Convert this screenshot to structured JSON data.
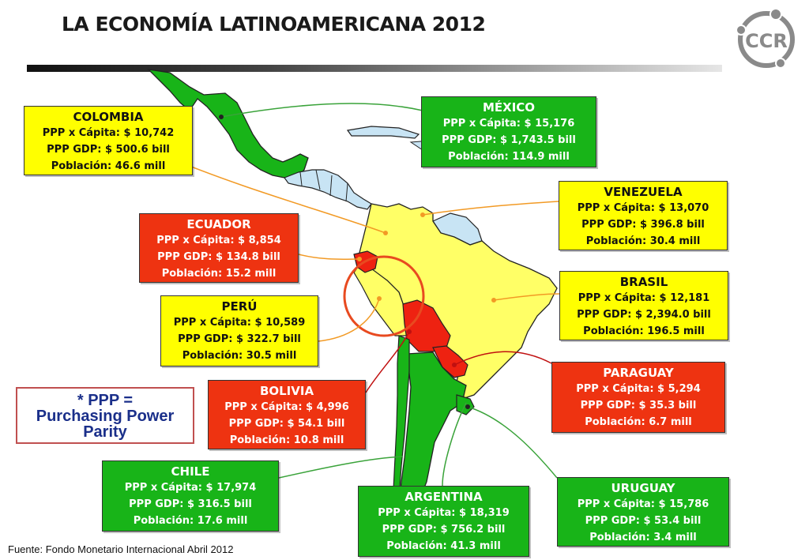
{
  "title": "LA ECONOMÍA LATINOAMERICANA 2012",
  "logo_text": "CCR",
  "ppp_note": {
    "line1": "* PPP =",
    "line2": "Purchasing Power",
    "line3": "Parity"
  },
  "source": "Fuente: Fondo Monetario Internacional Abril 2012",
  "colors": {
    "yellow": "#ffff00",
    "green": "#18b418",
    "red": "#ee3311",
    "land_other": "#c8e4f4",
    "highlight_circle": "#e84a20"
  },
  "countries": {
    "colombia": {
      "name": "COLOMBIA",
      "per_capita": "PPP x Cápita: $ 10,742",
      "gdp": "PPP GDP: $ 500.6 bill",
      "population": "Población: 46.6 mill",
      "color": "yellow"
    },
    "mexico": {
      "name": "MÉXICO",
      "per_capita": "PPP x Cápita: $ 15,176",
      "gdp": "PPP GDP: $ 1,743.5 bill",
      "population": "Población: 114.9 mill",
      "color": "green"
    },
    "venezuela": {
      "name": "VENEZUELA",
      "per_capita": "PPP x Cápita: $ 13,070",
      "gdp": "PPP GDP: $ 396.8 bill",
      "population": "Población: 30.4 mill",
      "color": "yellow"
    },
    "ecuador": {
      "name": "ECUADOR",
      "per_capita": "PPP x Cápita: $ 8,854",
      "gdp": "PPP GDP: $ 134.8 bill",
      "population": "Población: 15.2 mill",
      "color": "red"
    },
    "brasil": {
      "name": "BRASIL",
      "per_capita": "PPP x Cápita: $ 12,181",
      "gdp": "PPP GDP: $ 2,394.0 bill",
      "population": "Población: 196.5 mill",
      "color": "yellow"
    },
    "peru": {
      "name": "PERÚ",
      "per_capita": "PPP x Cápita: $ 10,589",
      "gdp": "PPP GDP: $ 322.7 bill",
      "population": "Población: 30.5 mill",
      "color": "yellow"
    },
    "paraguay": {
      "name": "PARAGUAY",
      "per_capita": "PPP x Cápita: $ 5,294",
      "gdp": "PPP GDP: $ 35.3 bill",
      "population": "Población: 6.7 mill",
      "color": "red"
    },
    "bolivia": {
      "name": "BOLIVIA",
      "per_capita": "PPP x Cápita: $ 4,996",
      "gdp": "PPP GDP: $ 54.1 bill",
      "population": "Población: 10.8 mill",
      "color": "red"
    },
    "chile": {
      "name": "CHILE",
      "per_capita": "PPP x Cápita: $ 17,974",
      "gdp": "PPP GDP: $ 316.5 bill",
      "population": "Población: 17.6 mill",
      "color": "green"
    },
    "uruguay": {
      "name": "URUGUAY",
      "per_capita": "PPP x Cápita: $ 15,786",
      "gdp": "PPP GDP: $ 53.4 bill",
      "population": "Población: 3.4 mill",
      "color": "green"
    },
    "argentina": {
      "name": "ARGENTINA",
      "per_capita": "PPP x Cápita: $ 18,319",
      "gdp": "PPP GDP: $ 756.2 bill",
      "population": "Población: 41.3 mill",
      "color": "green"
    }
  }
}
